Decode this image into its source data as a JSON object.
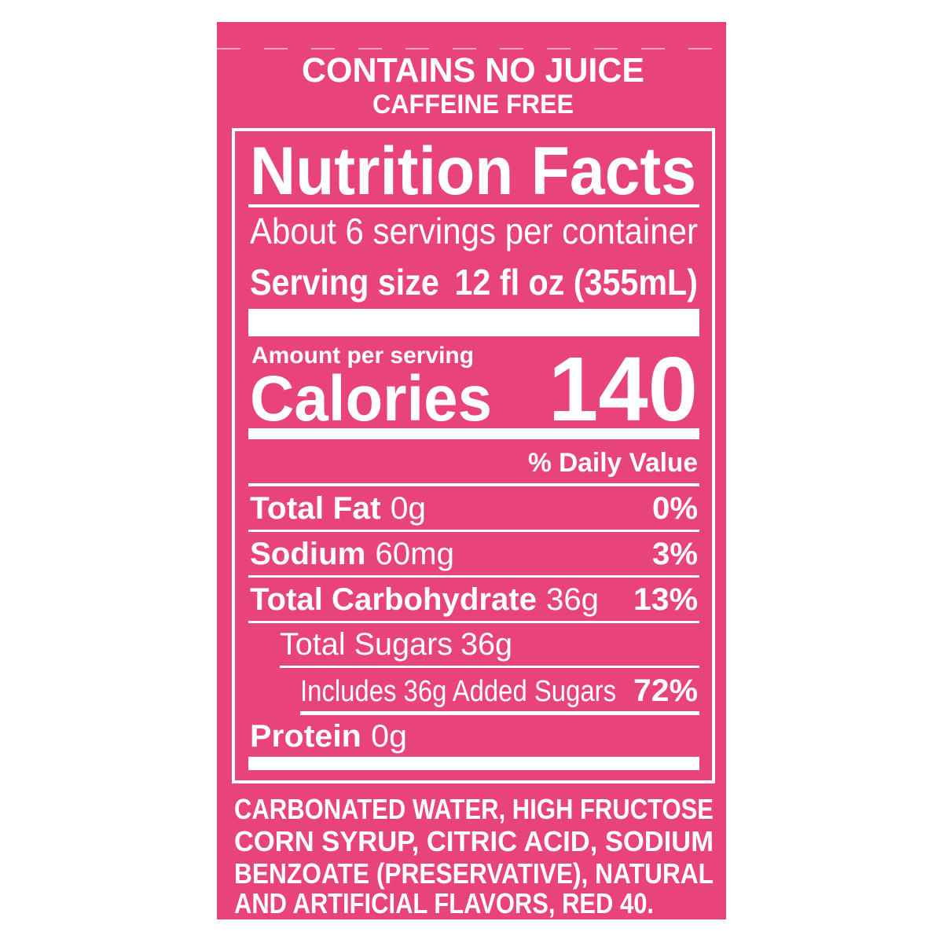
{
  "header": {
    "line1": "CONTAINS NO JUICE",
    "line2": "CAFFEINE FREE"
  },
  "facts": {
    "title": "Nutrition Facts",
    "servings": "About 6 servings per container",
    "serving_size_label": "Serving size",
    "serving_size_value": "12 fl oz (355mL)",
    "amount_label": "Amount per serving",
    "calories_label": "Calories",
    "calories": 140,
    "dv_header": "% Daily Value",
    "nutrients": [
      {
        "name": "Total Fat",
        "amount": "0g",
        "dv": "0%"
      },
      {
        "name": "Sodium",
        "amount": "60mg",
        "dv": "3%"
      },
      {
        "name": "Total Carbohydrate",
        "amount": "36g",
        "dv": "13%"
      },
      {
        "name": "Total Sugars",
        "amount": "36g"
      },
      {
        "name": "Includes 36g Added Sugars",
        "dv": "72%"
      },
      {
        "name": "Protein",
        "amount": "0g"
      }
    ]
  },
  "ingredients": {
    "lines": [
      "CARBONATED WATER, HIGH FRUCTOSE",
      "CORN SYRUP, CITRIC ACID, SODIUM",
      "BENZOATE (PRESERVATIVE), NATURAL",
      "AND ARTIFICIAL FLAVORS, RED 40."
    ]
  }
}
